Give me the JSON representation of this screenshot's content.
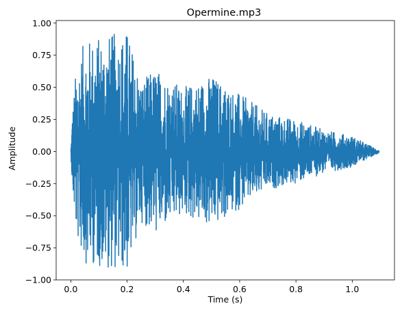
{
  "chart_data": {
    "type": "line",
    "title": "Opermine.mp3",
    "xlabel": "Time (s)",
    "ylabel": "Amplitude",
    "xlim": [
      -0.052,
      1.15
    ],
    "ylim": [
      -1.0,
      1.02
    ],
    "x_ticks": [
      0.0,
      0.2,
      0.4,
      0.6,
      0.8,
      1.0
    ],
    "y_ticks": [
      1.0,
      0.75,
      0.5,
      0.25,
      0.0,
      -0.25,
      -0.5,
      -0.75,
      -1.0
    ],
    "x_tick_labels": [
      "0.0",
      "0.2",
      "0.4",
      "0.6",
      "0.8",
      "1.0"
    ],
    "y_tick_labels": [
      "1.00",
      "0.75",
      "0.50",
      "0.25",
      "0.00",
      "−0.25",
      "−0.50",
      "−0.75",
      "−1.00"
    ],
    "grid": false,
    "series": [
      {
        "color": "#1f77b4",
        "duration_s": 1.095,
        "envelope": {
          "time_s": [
            0.0,
            0.005,
            0.02,
            0.05,
            0.1,
            0.15,
            0.2,
            0.25,
            0.3,
            0.4,
            0.5,
            0.6,
            0.7,
            0.8,
            0.9,
            1.0,
            1.05,
            1.095
          ],
          "amplitude": [
            0.0,
            0.3,
            0.68,
            0.87,
            0.9,
            0.92,
            0.95,
            0.55,
            0.65,
            0.5,
            0.6,
            0.45,
            0.3,
            0.25,
            0.17,
            0.12,
            0.06,
            0.01
          ]
        }
      }
    ]
  }
}
